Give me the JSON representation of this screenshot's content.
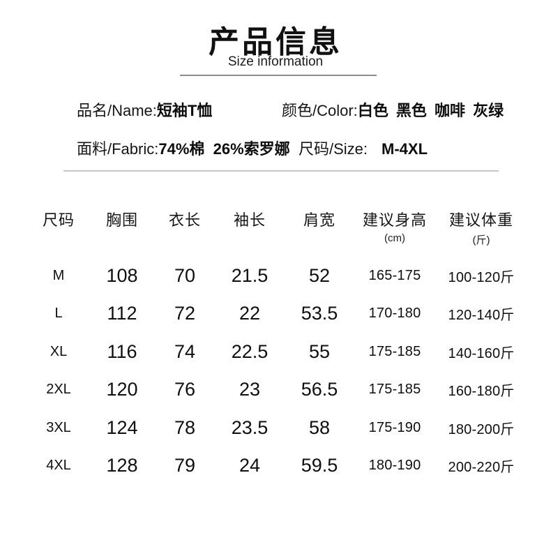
{
  "header": {
    "title": "产品信息",
    "subtitle": "Size information"
  },
  "info": {
    "name_label": "品名/Name:",
    "name_value": "短袖T恤",
    "color_label": "颜色/Color:",
    "color_value": "白色 黑色 咖啡 灰绿",
    "fabric_label": "面料/Fabric:",
    "fabric_value": "74%棉  26%索罗娜",
    "size_label": "尺码/Size:",
    "size_value": "M-4XL"
  },
  "table": {
    "columns": [
      {
        "label": "尺码",
        "unit": ""
      },
      {
        "label": "胸围",
        "unit": ""
      },
      {
        "label": "衣长",
        "unit": ""
      },
      {
        "label": "袖长",
        "unit": ""
      },
      {
        "label": "肩宽",
        "unit": ""
      },
      {
        "label": "建议身高",
        "unit": "(cm)"
      },
      {
        "label": "建议体重",
        "unit": "(斤)"
      }
    ],
    "rows": [
      {
        "size": "M",
        "chest": "108",
        "length": "70",
        "sleeve": "21.5",
        "shoulder": "52",
        "height": "165-175",
        "weight": "100-120斤"
      },
      {
        "size": "L",
        "chest": "112",
        "length": "72",
        "sleeve": "22",
        "shoulder": "53.5",
        "height": "170-180",
        "weight": "120-140斤"
      },
      {
        "size": "XL",
        "chest": "116",
        "length": "74",
        "sleeve": "22.5",
        "shoulder": "55",
        "height": "175-185",
        "weight": "140-160斤"
      },
      {
        "size": "2XL",
        "chest": "120",
        "length": "76",
        "sleeve": "23",
        "shoulder": "56.5",
        "height": "175-185",
        "weight": "160-180斤"
      },
      {
        "size": "3XL",
        "chest": "124",
        "length": "78",
        "sleeve": "23.5",
        "shoulder": "58",
        "height": "175-190",
        "weight": "180-200斤"
      },
      {
        "size": "4XL",
        "chest": "128",
        "length": "79",
        "sleeve": "24",
        "shoulder": "59.5",
        "height": "180-190",
        "weight": "200-220斤"
      }
    ]
  },
  "colors": {
    "text": "#111111",
    "divider_dark": "#8d8d8d",
    "divider_light": "#c9c9c9",
    "background": "#ffffff"
  }
}
